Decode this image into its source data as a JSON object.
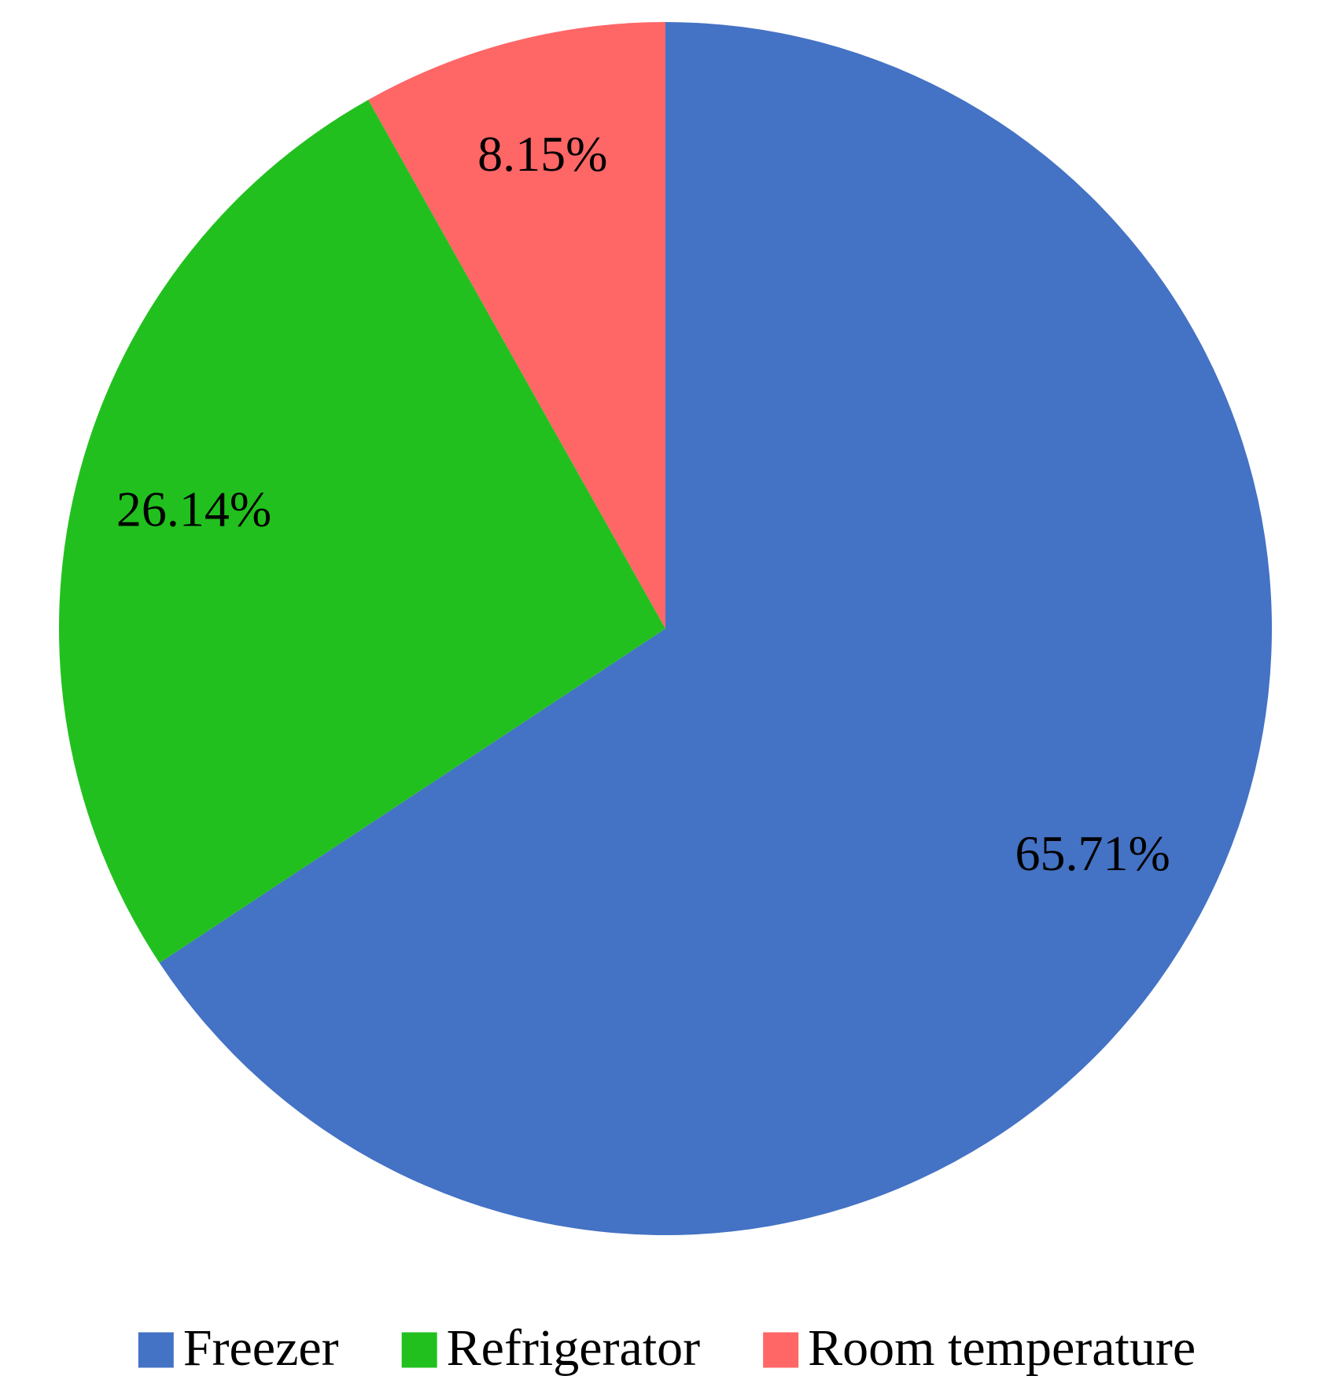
{
  "chart_data": {
    "type": "pie",
    "categories": [
      "Freezer",
      "Refrigerator",
      "Room temperature"
    ],
    "values": [
      65.71,
      26.14,
      8.15
    ],
    "value_labels": [
      "65.71%",
      "26.14%",
      "8.15%"
    ],
    "colors": [
      "#4472c4",
      "#22c01e",
      "#ff6666"
    ],
    "legend": "bottom"
  }
}
